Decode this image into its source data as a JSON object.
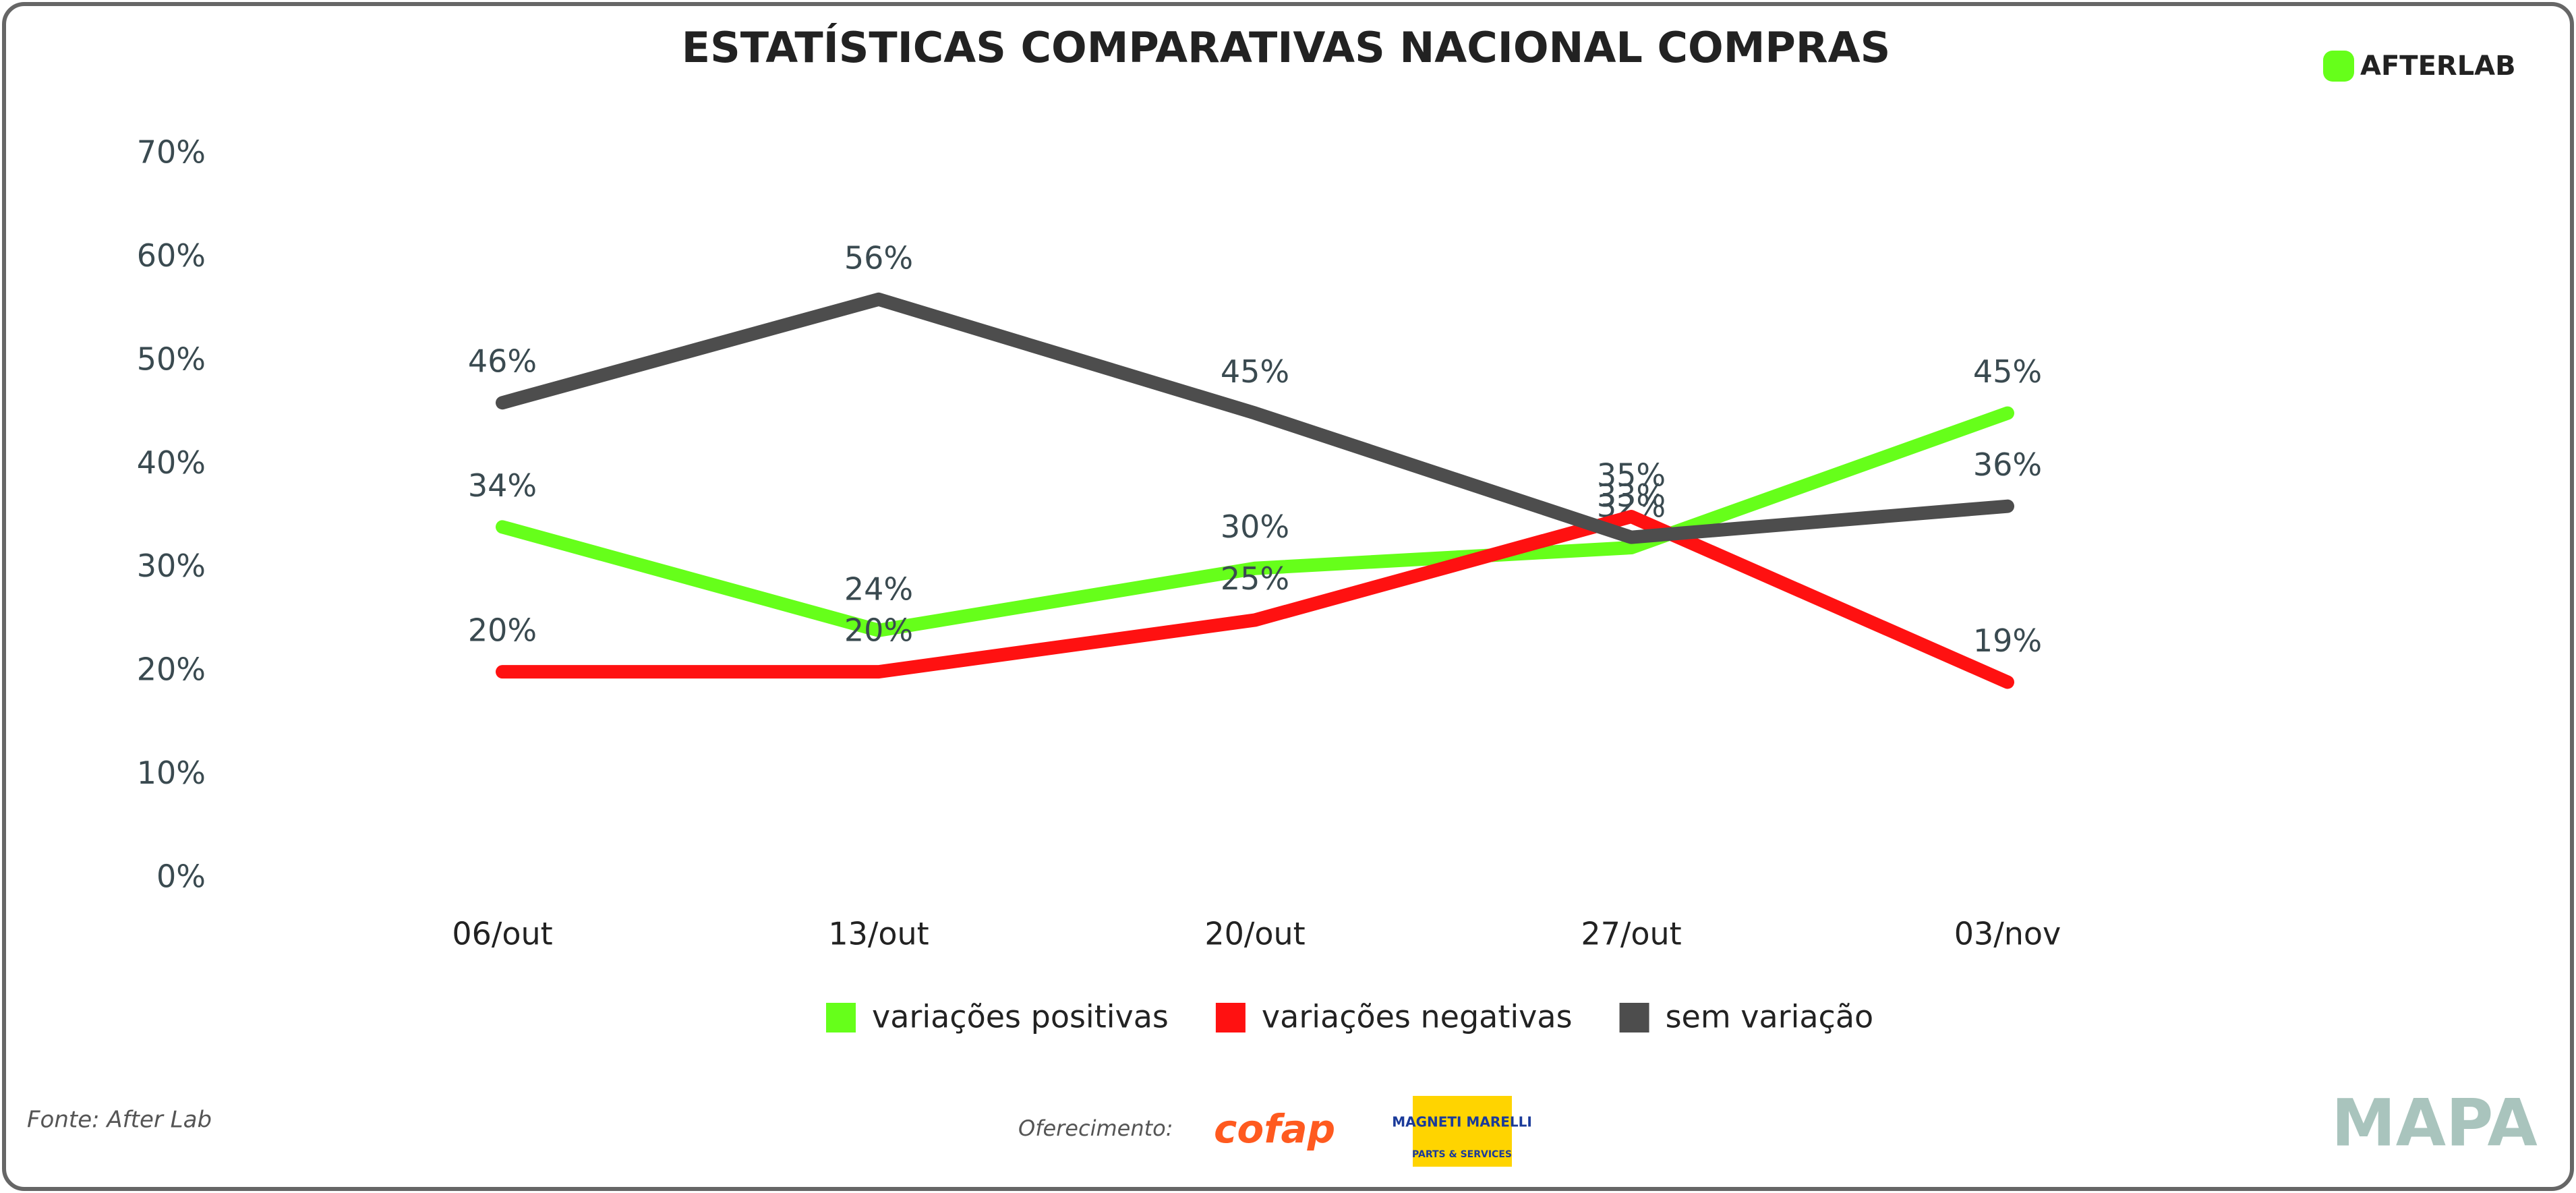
{
  "chart_data": {
    "type": "line",
    "title": "ESTATÍSTICAS COMPARATIVAS NACIONAL COMPRAS",
    "categories": [
      "06/out",
      "13/out",
      "20/out",
      "27/out",
      "03/nov"
    ],
    "series": [
      {
        "name": "variações positivas",
        "color": "#66ff1a",
        "values": [
          34,
          24,
          30,
          32,
          45
        ],
        "value_labels": [
          "34%",
          "24%",
          "30%",
          "32%",
          "45%"
        ]
      },
      {
        "name": "variações negativas",
        "color": "#ff1111",
        "values": [
          20,
          20,
          25,
          35,
          19
        ],
        "value_labels": [
          "20%",
          "20%",
          "25%",
          "35%",
          "19%"
        ]
      },
      {
        "name": "sem variação",
        "color": "#4d4d4d",
        "values": [
          46,
          56,
          45,
          33,
          36
        ],
        "value_labels": [
          "46%",
          "56%",
          "45%",
          "33%",
          "36%"
        ]
      }
    ],
    "ylim": [
      0,
      70
    ],
    "yticks": [
      {
        "value": 0,
        "label": "0%"
      },
      {
        "value": 10,
        "label": "10%"
      },
      {
        "value": 20,
        "label": "20%"
      },
      {
        "value": 30,
        "label": "30%"
      },
      {
        "value": 40,
        "label": "40%"
      },
      {
        "value": 50,
        "label": "50%"
      },
      {
        "value": 60,
        "label": "60%"
      },
      {
        "value": 70,
        "label": "70%"
      }
    ],
    "grid": false,
    "legend": "bottom"
  },
  "brand": "AFTERLAB",
  "footer": {
    "source": "Fonte: After Lab",
    "sponsor": "Oferecimento:",
    "sponsor1": "cofap",
    "sponsor2": "MAGNETI MARELLI",
    "sponsor2_sub": "PARTS & SERVICES",
    "logo": "MAPA"
  }
}
